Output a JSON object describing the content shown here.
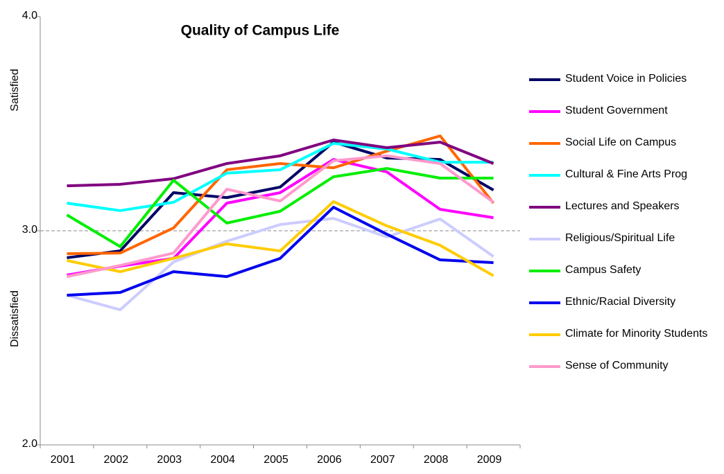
{
  "chart_data": {
    "type": "line",
    "title": "Quality of Campus Life",
    "annotations": [
      {
        "text": "Satisfied",
        "color": "#22aa22"
      },
      {
        "text": "Dissatisfied",
        "color": "#ee2222"
      }
    ],
    "reference_line": 3,
    "categories": [
      "2001",
      "2002",
      "2003",
      "2004",
      "2005",
      "2006",
      "2007",
      "2008",
      "2009"
    ],
    "ylim": [
      2,
      4
    ],
    "yticks": [
      {
        "value": 2,
        "label": "2.0"
      },
      {
        "value": 3,
        "label": "3.0"
      },
      {
        "value": 4,
        "label": "4.0"
      }
    ],
    "series": [
      {
        "name": "Student Voice in Policies",
        "color": "#000066",
        "values": [
          2.874,
          2.906,
          3.178,
          3.155,
          3.204,
          3.414,
          3.34,
          3.333,
          3.19
        ]
      },
      {
        "name": "Student Government",
        "color": "#ff00ff",
        "values": [
          2.793,
          2.835,
          2.871,
          3.129,
          3.178,
          3.333,
          3.275,
          3.1,
          3.061
        ]
      },
      {
        "name": "Social Life on Campus",
        "color": "#ff6600",
        "values": [
          2.893,
          2.896,
          3.013,
          3.285,
          3.314,
          3.294,
          3.372,
          3.443,
          3.129
        ]
      },
      {
        "name": "Cultural & Fine Arts Prog",
        "color": "#00ffff",
        "values": [
          3.129,
          3.094,
          3.133,
          3.269,
          3.285,
          3.408,
          3.382,
          3.32,
          3.32
        ]
      },
      {
        "name": "Lectures and Speakers",
        "color": "#800080",
        "values": [
          3.21,
          3.217,
          3.243,
          3.314,
          3.35,
          3.424,
          3.388,
          3.414,
          3.314
        ]
      },
      {
        "name": "Religious/Spiritual Life",
        "color": "#ccccff",
        "values": [
          2.699,
          2.631,
          2.854,
          2.951,
          3.029,
          3.058,
          2.971,
          3.055,
          2.88
        ]
      },
      {
        "name": "Campus Safety",
        "color": "#00ee00",
        "values": [
          3.074,
          2.926,
          3.236,
          3.036,
          3.091,
          3.252,
          3.291,
          3.246,
          3.246
        ]
      },
      {
        "name": "Ethnic/Racial Diversity",
        "color": "#0000ee",
        "values": [
          2.699,
          2.712,
          2.809,
          2.786,
          2.871,
          3.11,
          2.984,
          2.864,
          2.851
        ]
      },
      {
        "name": "Climate for Minority Students",
        "color": "#ffcc00",
        "values": [
          2.861,
          2.809,
          2.871,
          2.939,
          2.906,
          3.136,
          3.023,
          2.932,
          2.79
        ]
      },
      {
        "name": "Sense of Community",
        "color": "#ff99cc",
        "values": [
          2.786,
          2.838,
          2.896,
          3.194,
          3.139,
          3.327,
          3.35,
          3.314,
          3.133
        ]
      }
    ]
  }
}
